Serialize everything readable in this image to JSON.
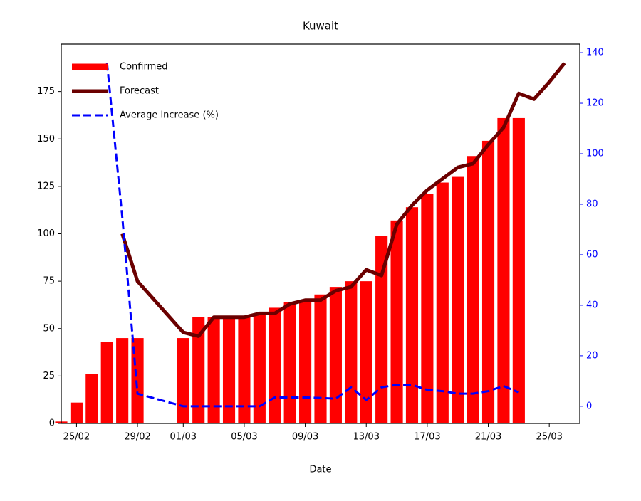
{
  "chart_data": {
    "type": "bar_line",
    "title": "Kuwait",
    "xlabel": "Date",
    "x": [
      "24/02",
      "25/02",
      "26/02",
      "27/02",
      "28/02",
      "29/02",
      "01/03",
      "02/03",
      "03/03",
      "04/03",
      "05/03",
      "06/03",
      "07/03",
      "08/03",
      "09/03",
      "10/03",
      "11/03",
      "12/03",
      "13/03",
      "14/03",
      "15/03",
      "16/03",
      "17/03",
      "18/03",
      "19/03",
      "20/03",
      "21/03",
      "22/03",
      "23/03",
      "24/03",
      "25/03",
      "26/03"
    ],
    "xlim": [
      "24/02",
      "27/03"
    ],
    "xticks": [
      "25/02",
      "29/02",
      "01/03",
      "05/03",
      "09/03",
      "13/03",
      "17/03",
      "21/03",
      "25/03"
    ],
    "ylim": [
      0,
      200
    ],
    "yticks": [
      0,
      25,
      50,
      75,
      100,
      125,
      150,
      175
    ],
    "y2lim": [
      -6.8,
      143.4
    ],
    "y2ticks": [
      0,
      20,
      40,
      60,
      80,
      100,
      120,
      140
    ],
    "y2color": "#0000ff",
    "legend": "upper left",
    "series": [
      {
        "name": "Confirmed",
        "kind": "bar",
        "color": "#ff0000",
        "values": [
          1,
          11,
          26,
          43,
          45,
          45,
          45,
          56,
          56,
          56,
          56,
          58,
          61,
          64,
          65,
          68,
          72,
          75,
          75,
          99,
          107,
          114,
          121,
          127,
          130,
          141,
          149,
          161,
          161,
          null,
          null,
          null
        ]
      },
      {
        "name": "Forecast",
        "kind": "line",
        "color": "#6b0000",
        "values": [
          null,
          null,
          null,
          null,
          100,
          75,
          48,
          46,
          56,
          56,
          56,
          58,
          58,
          63,
          65,
          65,
          70,
          72,
          81,
          78,
          105,
          115,
          123,
          129,
          135,
          137,
          147,
          156,
          174,
          171,
          180,
          190
        ]
      },
      {
        "name": "Average increase (%)",
        "kind": "dashed",
        "color": "#0000ff",
        "axis": "y2",
        "values": [
          null,
          null,
          null,
          136,
          75,
          5,
          0,
          0,
          0,
          0,
          0,
          0,
          3.5,
          3.5,
          3.5,
          3.3,
          3,
          7.5,
          2.5,
          7.5,
          8.5,
          8.5,
          6.5,
          6,
          5,
          5,
          6,
          8,
          5.5,
          null,
          null,
          null
        ]
      }
    ]
  }
}
